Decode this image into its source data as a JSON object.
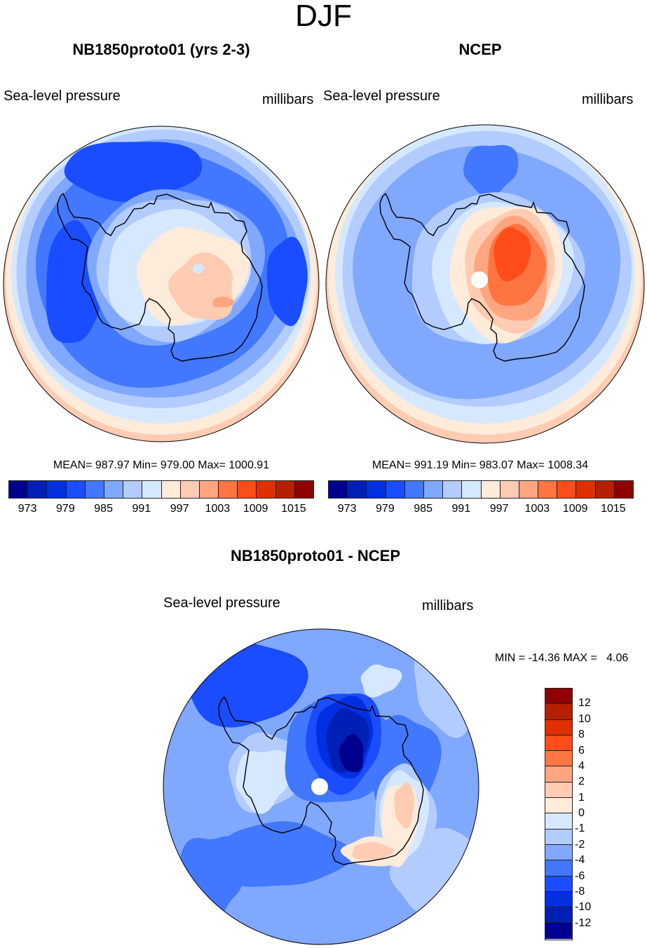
{
  "figure": {
    "title": "DJF",
    "field_label": "Sea-level pressure",
    "units_label": "millibars"
  },
  "palette": [
    "#00008f",
    "#0020b5",
    "#0030e0",
    "#1a4dff",
    "#4277ff",
    "#80a8ff",
    "#b3ccff",
    "#d6e8ff",
    "#ffebd9",
    "#ffccb3",
    "#ffa680",
    "#ff7542",
    "#ff4d1a",
    "#e03000",
    "#b52000",
    "#8f0000"
  ],
  "chart_data": [
    {
      "type": "heatmap",
      "subtype": "polar-stereographic filled contour (Southern Hemisphere, Antarctica)",
      "title": "NB1850proto01 (yrs 2-3)",
      "left_label": "Sea-level pressure",
      "right_label": "millibars",
      "stats": {
        "mean": 987.97,
        "min": 979.0,
        "max": 1000.91
      },
      "stats_text": "MEAN= 987.97  Min= 979.00  Max= 1000.91",
      "colorbar": {
        "orientation": "horizontal",
        "levels": [
          973,
          976,
          979,
          982,
          985,
          988,
          991,
          994,
          997,
          1000,
          1003,
          1006,
          1009,
          1012,
          1015
        ],
        "tick_labels": [
          "973",
          "979",
          "985",
          "991",
          "997",
          "1003",
          "1009",
          "1015"
        ]
      }
    },
    {
      "type": "heatmap",
      "subtype": "polar-stereographic filled contour (Southern Hemisphere, Antarctica)",
      "title": "NCEP",
      "left_label": "Sea-level pressure",
      "right_label": "millibars",
      "stats": {
        "mean": 991.19,
        "min": 983.07,
        "max": 1008.34
      },
      "stats_text": "MEAN= 991.19  Min= 983.07  Max= 1008.34",
      "colorbar": {
        "orientation": "horizontal",
        "levels": [
          973,
          976,
          979,
          982,
          985,
          988,
          991,
          994,
          997,
          1000,
          1003,
          1006,
          1009,
          1012,
          1015
        ],
        "tick_labels": [
          "973",
          "979",
          "985",
          "991",
          "997",
          "1003",
          "1009",
          "1015"
        ]
      }
    },
    {
      "type": "heatmap",
      "subtype": "polar-stereographic filled contour difference (Southern Hemisphere, Antarctica)",
      "title": "NB1850proto01 - NCEP",
      "left_label": "Sea-level pressure",
      "right_label": "millibars",
      "stats": {
        "min": -14.36,
        "max": 4.06
      },
      "stats_text": "MIN = -14.36 MAX =   4.06",
      "colorbar": {
        "orientation": "vertical",
        "levels": [
          -12,
          -10,
          -8,
          -6,
          -4,
          -2,
          -1,
          0,
          1,
          2,
          4,
          6,
          8,
          10,
          12
        ],
        "tick_labels": [
          "12",
          "10",
          "8",
          "6",
          "4",
          "2",
          "1",
          "0",
          "-1",
          "-2",
          "-4",
          "-6",
          "-8",
          "-10",
          "-12"
        ]
      }
    }
  ]
}
